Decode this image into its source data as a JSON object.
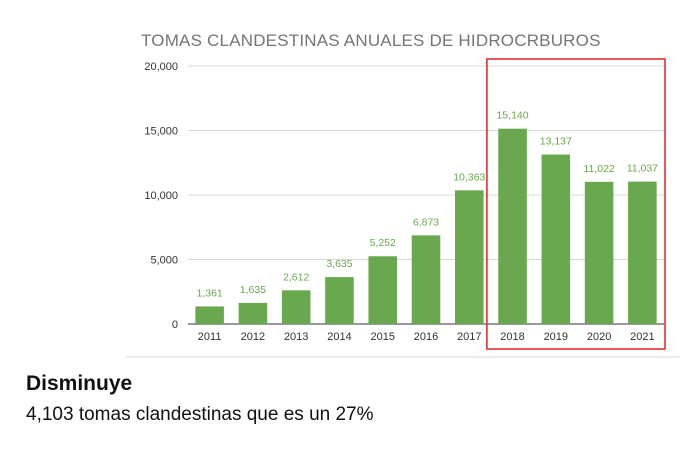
{
  "chart_data": {
    "type": "bar",
    "title": "TOMAS CLANDESTINAS ANUALES DE HIDROCRBUROS",
    "categories": [
      "2011",
      "2012",
      "2013",
      "2014",
      "2015",
      "2016",
      "2017",
      "2018",
      "2019",
      "2020",
      "2021"
    ],
    "values": [
      1361,
      1635,
      2612,
      3635,
      5252,
      6873,
      10363,
      15140,
      13137,
      11022,
      11037
    ],
    "data_labels": [
      "1,361",
      "1,635",
      "2,612",
      "3,635",
      "5,252",
      "6,873",
      "10,363",
      "15,140",
      "13,137",
      "11,022",
      "11,037"
    ],
    "ylim": [
      0,
      20000
    ],
    "yticks": [
      0,
      5000,
      10000,
      15000,
      20000
    ],
    "ytick_labels": [
      "0",
      "5,000",
      "10,000",
      "15,000",
      "20,000"
    ],
    "xlabel": "",
    "ylabel": "",
    "grid": true,
    "bar_color": "#6aa84f",
    "label_color": "#6aa84f",
    "highlight": {
      "categories": [
        "2018",
        "2019",
        "2020",
        "2021"
      ],
      "color": "#e03131"
    }
  },
  "caption": {
    "title": "Disminuye",
    "text": "4,103 tomas clandestinas que es un 27%"
  }
}
